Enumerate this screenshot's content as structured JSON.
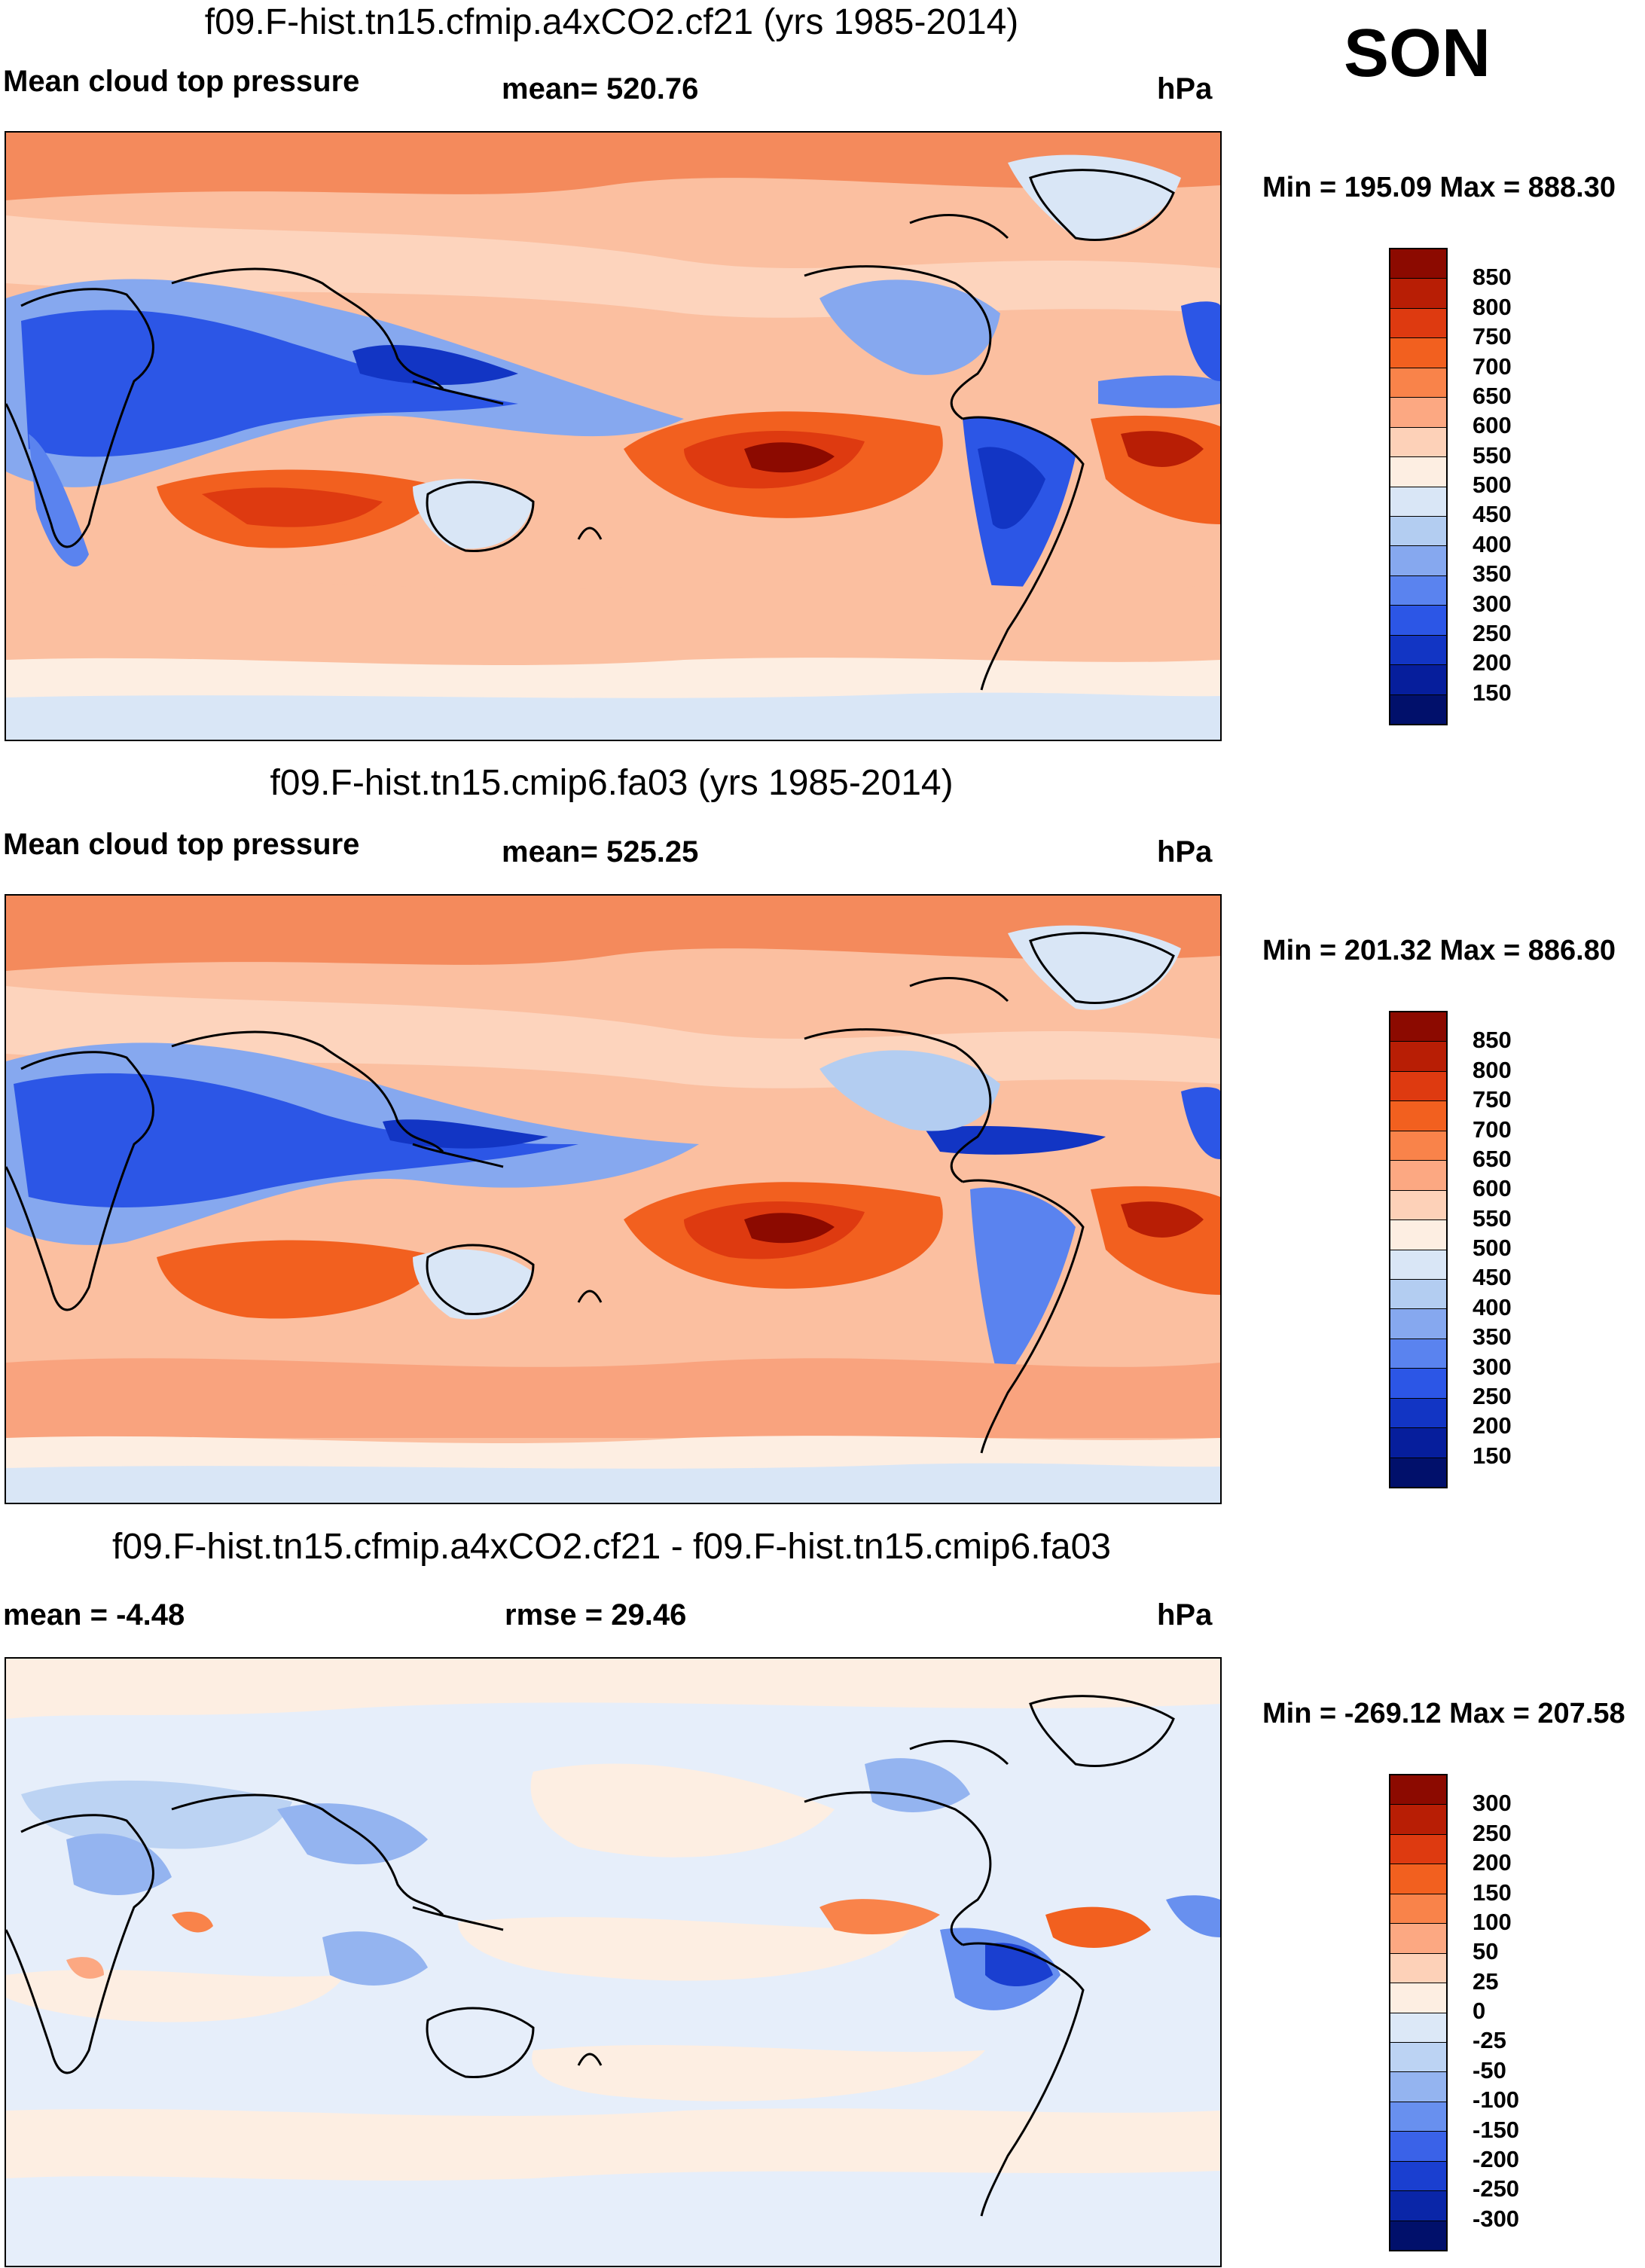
{
  "season": "SON",
  "panels": [
    {
      "title": "f09.F-hist.tn15.cfmip.a4xCO2.cf21 (yrs 1985-2014)",
      "left_label": "Mean cloud top pressure",
      "center_label": "mean= 520.76",
      "units": "hPa",
      "minmax": "Min = 195.09 Max = 888.30",
      "colorbar_labels": [
        "850",
        "800",
        "750",
        "700",
        "650",
        "600",
        "550",
        "500",
        "450",
        "400",
        "350",
        "300",
        "250",
        "200",
        "150"
      ]
    },
    {
      "title": "f09.F-hist.tn15.cmip6.fa03 (yrs 1985-2014)",
      "left_label": "Mean cloud top pressure",
      "center_label": "mean= 525.25",
      "units": "hPa",
      "minmax": "Min = 201.32 Max = 886.80",
      "colorbar_labels": [
        "850",
        "800",
        "750",
        "700",
        "650",
        "600",
        "550",
        "500",
        "450",
        "400",
        "350",
        "300",
        "250",
        "200",
        "150"
      ]
    },
    {
      "title": "f09.F-hist.tn15.cfmip.a4xCO2.cf21 - f09.F-hist.tn15.cmip6.fa03",
      "left_label": "mean =  -4.48",
      "center_label": "rmse =  29.46",
      "units": "hPa",
      "minmax": "Min = -269.12 Max = 207.58",
      "colorbar_labels": [
        "300",
        "250",
        "200",
        "150",
        "100",
        "50",
        "25",
        "0",
        "-25",
        "-50",
        "-100",
        "-150",
        "-200",
        "-250",
        "-300"
      ]
    }
  ],
  "colors": {
    "field_scale": [
      "#8c0a00",
      "#b81e05",
      "#de3a10",
      "#f2601f",
      "#f9834a",
      "#fca882",
      "#fdd1b8",
      "#fdeee2",
      "#d9e6f6",
      "#b3cdf1",
      "#86a8ef",
      "#5a83ef",
      "#2c56e6",
      "#1235c4",
      "#061e9c",
      "#01106b"
    ],
    "diff_scale": [
      "#8c0a00",
      "#b81e05",
      "#de3a10",
      "#f2601f",
      "#f9834a",
      "#fca882",
      "#fdd1b8",
      "#fdeee2",
      "#dce8f7",
      "#bcd3f3",
      "#94b4f0",
      "#6890ef",
      "#3a62e8",
      "#1a3fd0",
      "#0a26a8",
      "#01106b"
    ]
  }
}
